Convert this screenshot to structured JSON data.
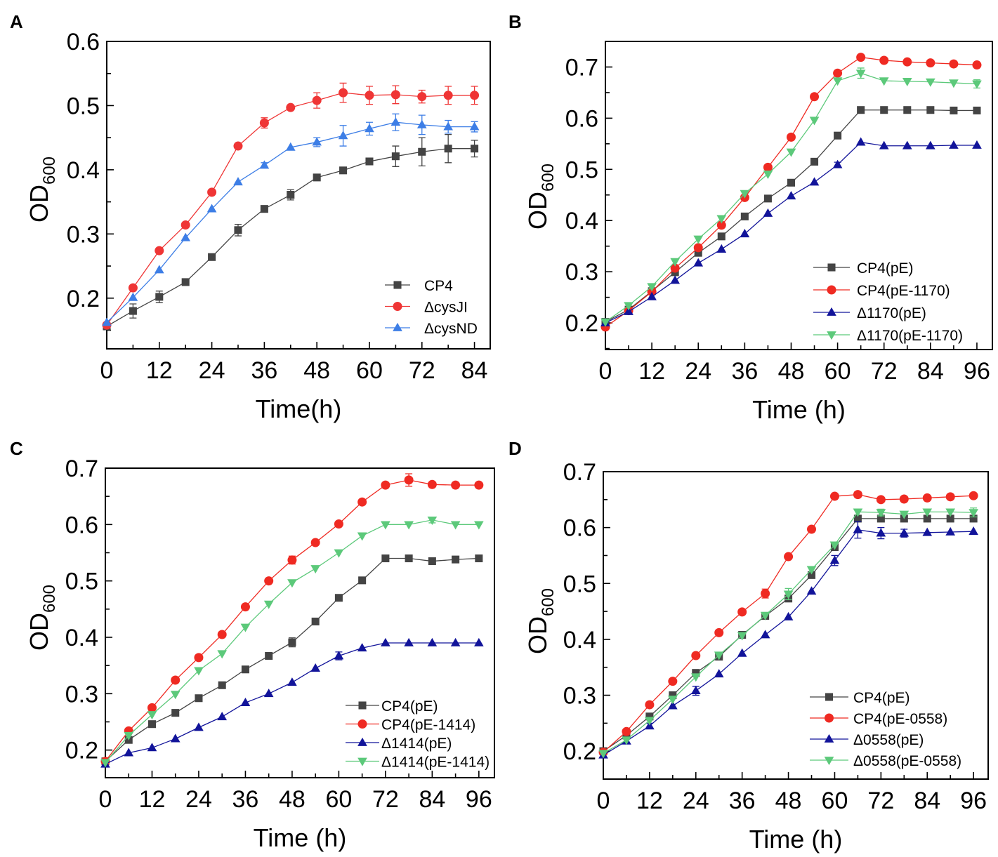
{
  "chart_data": [
    {
      "type": "line",
      "panel": "A",
      "xlabel": "Time(h)",
      "ylabel": "OD",
      "ylabel_sub": "600",
      "xlim": [
        0,
        87.6
      ],
      "ylim": [
        0.121,
        0.6
      ],
      "xticks": [
        0,
        12,
        24,
        36,
        48,
        60,
        72,
        84
      ],
      "yticks": [
        0.2,
        0.3,
        0.4,
        0.5,
        0.6
      ],
      "grid": false,
      "legend_position": "bottom-right",
      "x": [
        0,
        6,
        12,
        18,
        24,
        30,
        36,
        42,
        48,
        54,
        60,
        66,
        72,
        78,
        84
      ],
      "series": [
        {
          "name": "CP4",
          "color": "#444444",
          "marker": "square",
          "values": [
            0.156,
            0.18,
            0.202,
            0.225,
            0.264,
            0.306,
            0.339,
            0.361,
            0.388,
            0.399,
            0.413,
            0.421,
            0.428,
            0.433,
            0.433
          ],
          "errors": [
            0.004,
            0.011,
            0.009,
            0.003,
            0.003,
            0.009,
            0.003,
            0.008,
            0.003,
            0.003,
            0.005,
            0.016,
            0.022,
            0.022,
            0.013
          ]
        },
        {
          "name": "ΔcysJI",
          "color": "#ef3535",
          "marker": "circle",
          "values": [
            0.158,
            0.216,
            0.274,
            0.314,
            0.365,
            0.437,
            0.473,
            0.497,
            0.508,
            0.52,
            0.516,
            0.517,
            0.514,
            0.516,
            0.516
          ],
          "errors": [
            0,
            0,
            0,
            0,
            0,
            0.004,
            0.008,
            0.003,
            0.012,
            0.015,
            0.014,
            0.014,
            0.01,
            0.014,
            0.014
          ]
        },
        {
          "name": "ΔcysND",
          "color": "#3d7ee6",
          "marker": "triangle-up",
          "values": [
            0.162,
            0.201,
            0.244,
            0.294,
            0.339,
            0.381,
            0.407,
            0.435,
            0.443,
            0.453,
            0.464,
            0.474,
            0.47,
            0.467,
            0.467
          ],
          "errors": [
            0,
            0,
            0,
            0,
            0,
            0,
            0.004,
            0,
            0.007,
            0.016,
            0.01,
            0.013,
            0.015,
            0.01,
            0.008
          ]
        }
      ]
    },
    {
      "type": "line",
      "panel": "B",
      "xlabel": "Time (h)",
      "ylabel": "OD",
      "ylabel_sub": "600",
      "xlim": [
        0,
        100
      ],
      "ylim": [
        0.148,
        0.75
      ],
      "xticks": [
        0,
        12,
        24,
        36,
        48,
        60,
        72,
        84,
        96
      ],
      "yticks": [
        0.2,
        0.3,
        0.4,
        0.5,
        0.6,
        0.7
      ],
      "grid": false,
      "legend_position": "bottom-right",
      "x": [
        0,
        6,
        12,
        18,
        24,
        30,
        36,
        42,
        48,
        54,
        60,
        66,
        72,
        78,
        84,
        90,
        96
      ],
      "series": [
        {
          "name": "CP4(pE)",
          "color": "#444444",
          "marker": "square",
          "values": [
            0.202,
            0.226,
            0.262,
            0.299,
            0.337,
            0.369,
            0.408,
            0.443,
            0.474,
            0.515,
            0.566,
            0.616,
            0.616,
            0.616,
            0.616,
            0.615,
            0.615
          ],
          "errors": [
            0,
            0,
            0,
            0,
            0,
            0,
            0,
            0,
            0,
            0,
            0,
            0,
            0,
            0,
            0,
            0,
            0
          ]
        },
        {
          "name": "CP4(pE-1170)",
          "color": "#ef2a22",
          "marker": "circle",
          "values": [
            0.192,
            0.224,
            0.261,
            0.307,
            0.347,
            0.391,
            0.445,
            0.504,
            0.563,
            0.642,
            0.688,
            0.719,
            0.713,
            0.71,
            0.708,
            0.706,
            0.704
          ],
          "errors": [
            0,
            0,
            0,
            0,
            0,
            0,
            0,
            0,
            0,
            0,
            0,
            0,
            0,
            0,
            0,
            0,
            0
          ]
        },
        {
          "name": "Δ1170(pE)",
          "color": "#12149a",
          "marker": "triangle-up",
          "values": [
            0.2,
            0.222,
            0.251,
            0.283,
            0.317,
            0.344,
            0.374,
            0.414,
            0.448,
            0.475,
            0.509,
            0.553,
            0.546,
            0.546,
            0.546,
            0.547,
            0.547
          ],
          "errors": [
            0,
            0,
            0,
            0,
            0,
            0,
            0,
            0,
            0,
            0,
            0.005,
            0,
            0,
            0,
            0,
            0,
            0
          ]
        },
        {
          "name": "Δ1170(pE-1170)",
          "color": "#5cc97a",
          "marker": "triangle-down",
          "values": [
            0.202,
            0.234,
            0.271,
            0.32,
            0.364,
            0.404,
            0.453,
            0.491,
            0.534,
            0.596,
            0.673,
            0.688,
            0.673,
            0.672,
            0.671,
            0.669,
            0.667
          ],
          "errors": [
            0,
            0,
            0,
            0,
            0,
            0,
            0,
            0,
            0,
            0,
            0,
            0.01,
            0,
            0,
            0,
            0,
            0.008
          ]
        }
      ]
    },
    {
      "type": "line",
      "panel": "C",
      "xlabel": "Time (h)",
      "ylabel": "OD",
      "ylabel_sub": "600",
      "xlim": [
        0,
        100
      ],
      "ylim": [
        0.151,
        0.7
      ],
      "xticks": [
        0,
        12,
        24,
        36,
        48,
        60,
        72,
        84,
        96
      ],
      "yticks": [
        0.2,
        0.3,
        0.4,
        0.5,
        0.6,
        0.7
      ],
      "grid": false,
      "legend_position": "bottom-right",
      "x": [
        0,
        6,
        12,
        18,
        24,
        30,
        36,
        42,
        48,
        54,
        60,
        66,
        72,
        78,
        84,
        90,
        96
      ],
      "series": [
        {
          "name": "CP4(pE)",
          "color": "#444444",
          "marker": "square",
          "values": [
            0.18,
            0.218,
            0.246,
            0.266,
            0.292,
            0.315,
            0.343,
            0.367,
            0.391,
            0.428,
            0.47,
            0.501,
            0.54,
            0.54,
            0.535,
            0.538,
            0.54
          ],
          "errors": [
            0,
            0,
            0,
            0,
            0,
            0,
            0,
            0,
            0.008,
            0,
            0,
            0,
            0,
            0,
            0,
            0,
            0
          ]
        },
        {
          "name": "CP4(pE-1414)",
          "color": "#ef2a22",
          "marker": "circle",
          "values": [
            0.18,
            0.234,
            0.275,
            0.324,
            0.364,
            0.405,
            0.454,
            0.5,
            0.537,
            0.568,
            0.601,
            0.64,
            0.67,
            0.679,
            0.671,
            0.67,
            0.67
          ],
          "errors": [
            0,
            0,
            0,
            0,
            0,
            0,
            0,
            0,
            0.007,
            0,
            0,
            0,
            0,
            0.011,
            0,
            0,
            0
          ]
        },
        {
          "name": "Δ1414(pE)",
          "color": "#12149a",
          "marker": "triangle-up",
          "values": [
            0.175,
            0.195,
            0.204,
            0.22,
            0.24,
            0.259,
            0.284,
            0.3,
            0.32,
            0.345,
            0.367,
            0.381,
            0.39,
            0.39,
            0.39,
            0.39,
            0.39
          ],
          "errors": [
            0,
            0,
            0,
            0,
            0,
            0,
            0,
            0,
            0,
            0,
            0.007,
            0,
            0,
            0,
            0,
            0,
            0
          ]
        },
        {
          "name": "Δ1414(pE-1414)",
          "color": "#5cc97a",
          "marker": "triangle-down",
          "values": [
            0.178,
            0.226,
            0.263,
            0.299,
            0.341,
            0.371,
            0.418,
            0.459,
            0.497,
            0.522,
            0.55,
            0.58,
            0.6,
            0.6,
            0.608,
            0.6,
            0.6
          ],
          "errors": [
            0,
            0,
            0,
            0,
            0,
            0,
            0,
            0,
            0,
            0,
            0,
            0,
            0,
            0,
            0.005,
            0,
            0
          ]
        }
      ]
    },
    {
      "type": "line",
      "panel": "D",
      "xlabel": "Time (h)",
      "ylabel": "OD",
      "ylabel_sub": "600",
      "xlim": [
        0,
        99.8
      ],
      "ylim": [
        0.15,
        0.7
      ],
      "xticks": [
        0,
        12,
        24,
        36,
        48,
        60,
        72,
        84,
        96
      ],
      "yticks": [
        0.2,
        0.3,
        0.4,
        0.5,
        0.6,
        0.7
      ],
      "grid": false,
      "legend_position": "bottom-right",
      "x": [
        0,
        6,
        12,
        18,
        24,
        30,
        36,
        42,
        48,
        54,
        60,
        66,
        72,
        78,
        84,
        90,
        96
      ],
      "series": [
        {
          "name": "CP4(pE)",
          "color": "#444444",
          "marker": "square",
          "values": [
            0.2,
            0.228,
            0.262,
            0.3,
            0.34,
            0.369,
            0.408,
            0.442,
            0.473,
            0.515,
            0.565,
            0.616,
            0.616,
            0.616,
            0.616,
            0.616,
            0.616
          ],
          "errors": [
            0,
            0,
            0,
            0,
            0,
            0,
            0,
            0,
            0,
            0,
            0,
            0,
            0,
            0,
            0,
            0,
            0
          ]
        },
        {
          "name": "CP4(pE-0558)",
          "color": "#ef2a22",
          "marker": "circle",
          "values": [
            0.198,
            0.235,
            0.283,
            0.325,
            0.371,
            0.412,
            0.449,
            0.482,
            0.548,
            0.597,
            0.656,
            0.659,
            0.65,
            0.651,
            0.653,
            0.655,
            0.657
          ],
          "errors": [
            0,
            0,
            0,
            0,
            0,
            0,
            0,
            0.008,
            0,
            0,
            0,
            0.005,
            0,
            0,
            0,
            0,
            0
          ]
        },
        {
          "name": "Δ0558(pE)",
          "color": "#12149a",
          "marker": "triangle-up",
          "values": [
            0.193,
            0.218,
            0.245,
            0.281,
            0.308,
            0.338,
            0.375,
            0.408,
            0.44,
            0.486,
            0.541,
            0.596,
            0.59,
            0.59,
            0.591,
            0.592,
            0.593
          ],
          "errors": [
            0,
            0,
            0.005,
            0,
            0.008,
            0,
            0,
            0,
            0,
            0,
            0.009,
            0.015,
            0.01,
            0.007,
            0,
            0,
            0
          ]
        },
        {
          "name": "Δ0558(pE-0558)",
          "color": "#5cc97a",
          "marker": "triangle-down",
          "values": [
            0.196,
            0.22,
            0.255,
            0.293,
            0.333,
            0.372,
            0.407,
            0.443,
            0.481,
            0.525,
            0.569,
            0.628,
            0.627,
            0.624,
            0.628,
            0.628,
            0.627
          ],
          "errors": [
            0,
            0,
            0,
            0,
            0,
            0,
            0,
            0,
            0.01,
            0,
            0,
            0,
            0.006,
            0,
            0,
            0,
            0.008
          ]
        }
      ]
    }
  ]
}
